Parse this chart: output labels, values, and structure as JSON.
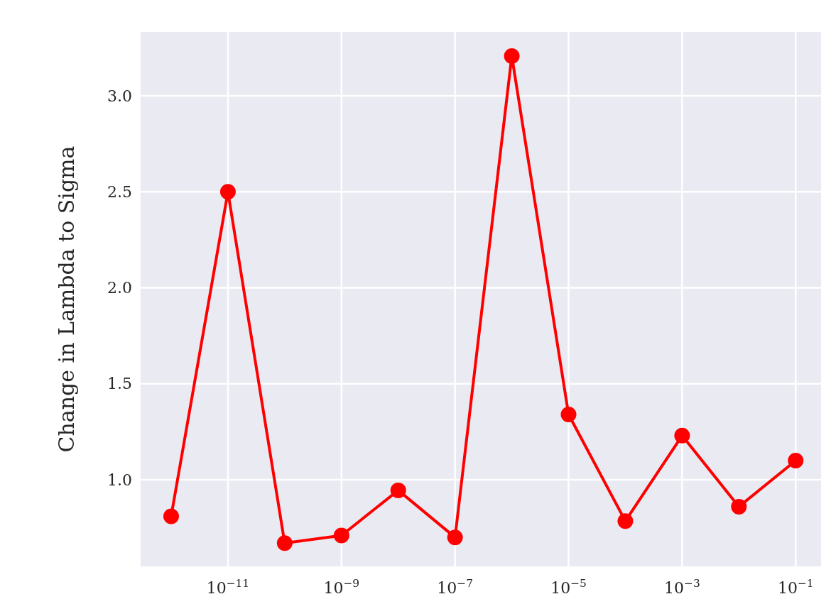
{
  "chart_data": {
    "type": "line",
    "ylabel": "Change in Lambda to Sigma",
    "x": [
      1e-12,
      1e-11,
      1e-10,
      1e-09,
      1e-08,
      1e-07,
      1e-06,
      1e-05,
      0.0001,
      0.001,
      0.01,
      0.1
    ],
    "series": [
      {
        "color": "#ff0000",
        "values": [
          0.81,
          2.5,
          0.67,
          0.71,
          0.945,
          0.7,
          3.207,
          1.34,
          0.785,
          1.23,
          0.86,
          1.1
        ]
      }
    ],
    "log": "x",
    "xlim": [
      2.9e-13,
      0.28
    ],
    "ylim": [
      0.549,
      3.333
    ],
    "xticks": [
      {
        "value": 1e-11,
        "label": "10$^{−11}$"
      },
      {
        "value": 1e-09,
        "label": "10$^{−9}$"
      },
      {
        "value": 1e-07,
        "label": "10$^{−7}$"
      },
      {
        "value": 1e-05,
        "label": "10$^{−5}$"
      },
      {
        "value": 0.001,
        "label": "10$^{−3}$"
      },
      {
        "value": 0.1,
        "label": "10$^{−1}$"
      }
    ],
    "yticks": [
      {
        "value": 1,
        "label": "1.0"
      },
      {
        "value": 1.5,
        "label": "1.5"
      },
      {
        "value": 2,
        "label": "2.0"
      },
      {
        "value": 2.5,
        "label": "2.5"
      },
      {
        "value": 3,
        "label": "3.0"
      }
    ],
    "grid": true,
    "marker": "circle",
    "line_style": "solid"
  }
}
